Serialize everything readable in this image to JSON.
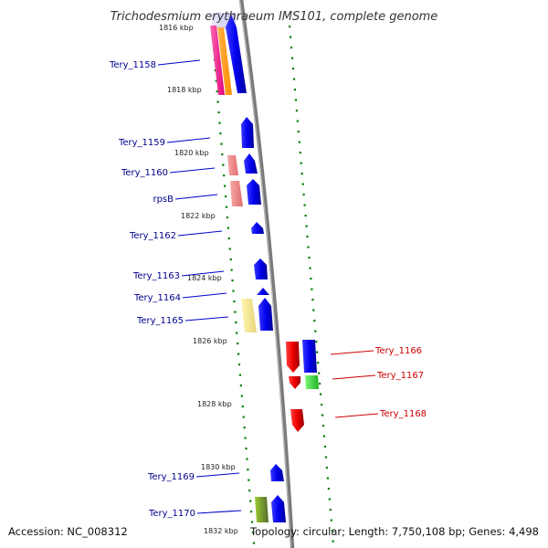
{
  "title": "Trichodesmium erythraeum IMS101, complete genome",
  "footer": {
    "accession": "Accession: NC_008312",
    "summary": "Topology: circular; Length: 7,750,108 bp; Genes: 4,498"
  },
  "kbp_labels": [
    "1816 kbp",
    "1818 kbp",
    "1820 kbp",
    "1822 kbp",
    "1824 kbp",
    "1826 kbp",
    "1828 kbp",
    "1830 kbp",
    "1832 kbp"
  ],
  "left_gene_labels": [
    "Tery_1158",
    "Tery_1159",
    "Tery_1160",
    "rpsB",
    "Tery_1162",
    "Tery_1163",
    "Tery_1164",
    "Tery_1165",
    "Tery_1169",
    "Tery_1170"
  ],
  "right_gene_labels": [
    "Tery_1166",
    "Tery_1167",
    "Tery_1168"
  ],
  "colors": {
    "forward_gene": "#0000ee",
    "reverse_gene": "#ee0000",
    "left_label": "#00008b",
    "right_label": "#cc0000",
    "tick": "#008000",
    "backbone": "#808080",
    "highlight_magenta": "#ff1493",
    "highlight_orange": "#ff8c00",
    "highlight_pink": "#f08080",
    "highlight_yellow": "#f0e68c",
    "highlight_green": "#32cd32",
    "highlight_olive": "#6b8e23"
  }
}
